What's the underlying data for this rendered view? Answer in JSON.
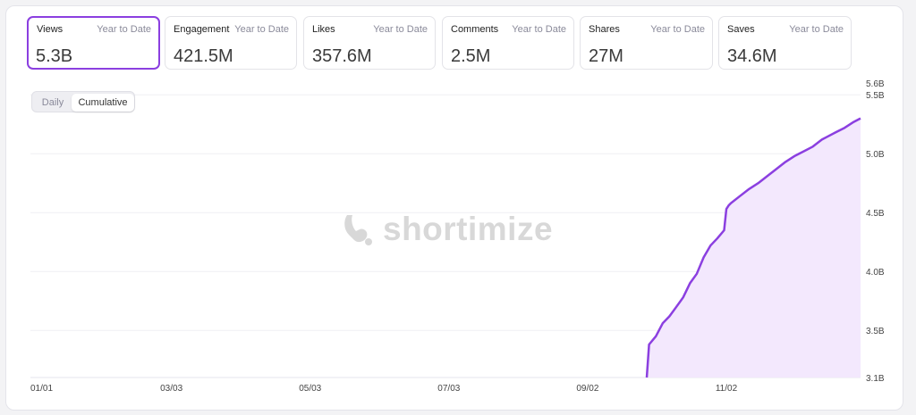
{
  "cards": [
    {
      "label": "Views",
      "period": "Year to Date",
      "value": "5.3B"
    },
    {
      "label": "Engagement",
      "period": "Year to Date",
      "value": "421.5M"
    },
    {
      "label": "Likes",
      "period": "Year to Date",
      "value": "357.6M"
    },
    {
      "label": "Comments",
      "period": "Year to Date",
      "value": "2.5M"
    },
    {
      "label": "Shares",
      "period": "Year to Date",
      "value": "27M"
    },
    {
      "label": "Saves",
      "period": "Year to Date",
      "value": "34.6M"
    }
  ],
  "toggle": {
    "daily": "Daily",
    "cumulative": "Cumulative",
    "selected": "Cumulative"
  },
  "watermark": "shortimize",
  "colors": {
    "accent": "#8b3fe0",
    "fill": "#f3e8fd"
  },
  "chart_data": {
    "type": "area",
    "title": "",
    "xlabel": "",
    "ylabel": "",
    "x_ticks": [
      "01/01",
      "03/03",
      "05/03",
      "07/03",
      "09/02",
      "11/02"
    ],
    "y_ticks": [
      "5.6B",
      "5.5B",
      "5.0B",
      "4.5B",
      "4.0B",
      "3.5B",
      "3.1B"
    ],
    "ylim": [
      3.1,
      5.6
    ],
    "y_unit": "B",
    "grid": true,
    "series": [
      {
        "name": "",
        "x": [
          "09/28",
          "09/29",
          "10/02",
          "10/05",
          "10/08",
          "10/11",
          "10/14",
          "10/17",
          "10/20",
          "10/23",
          "10/26",
          "10/29",
          "11/01",
          "11/02",
          "11/03",
          "11/04",
          "11/08",
          "11/12",
          "11/16",
          "11/20",
          "11/24",
          "11/28",
          "12/02",
          "12/06",
          "12/10",
          "12/14",
          "12/16",
          "12/20",
          "12/24",
          "12/28",
          "12/31"
        ],
        "y": [
          3.1,
          3.38,
          3.45,
          3.56,
          3.62,
          3.7,
          3.78,
          3.9,
          3.98,
          4.12,
          4.22,
          4.28,
          4.35,
          4.53,
          4.56,
          4.58,
          4.64,
          4.7,
          4.75,
          4.81,
          4.87,
          4.93,
          4.98,
          5.02,
          5.06,
          5.12,
          5.14,
          5.18,
          5.22,
          5.27,
          5.3
        ]
      }
    ]
  }
}
